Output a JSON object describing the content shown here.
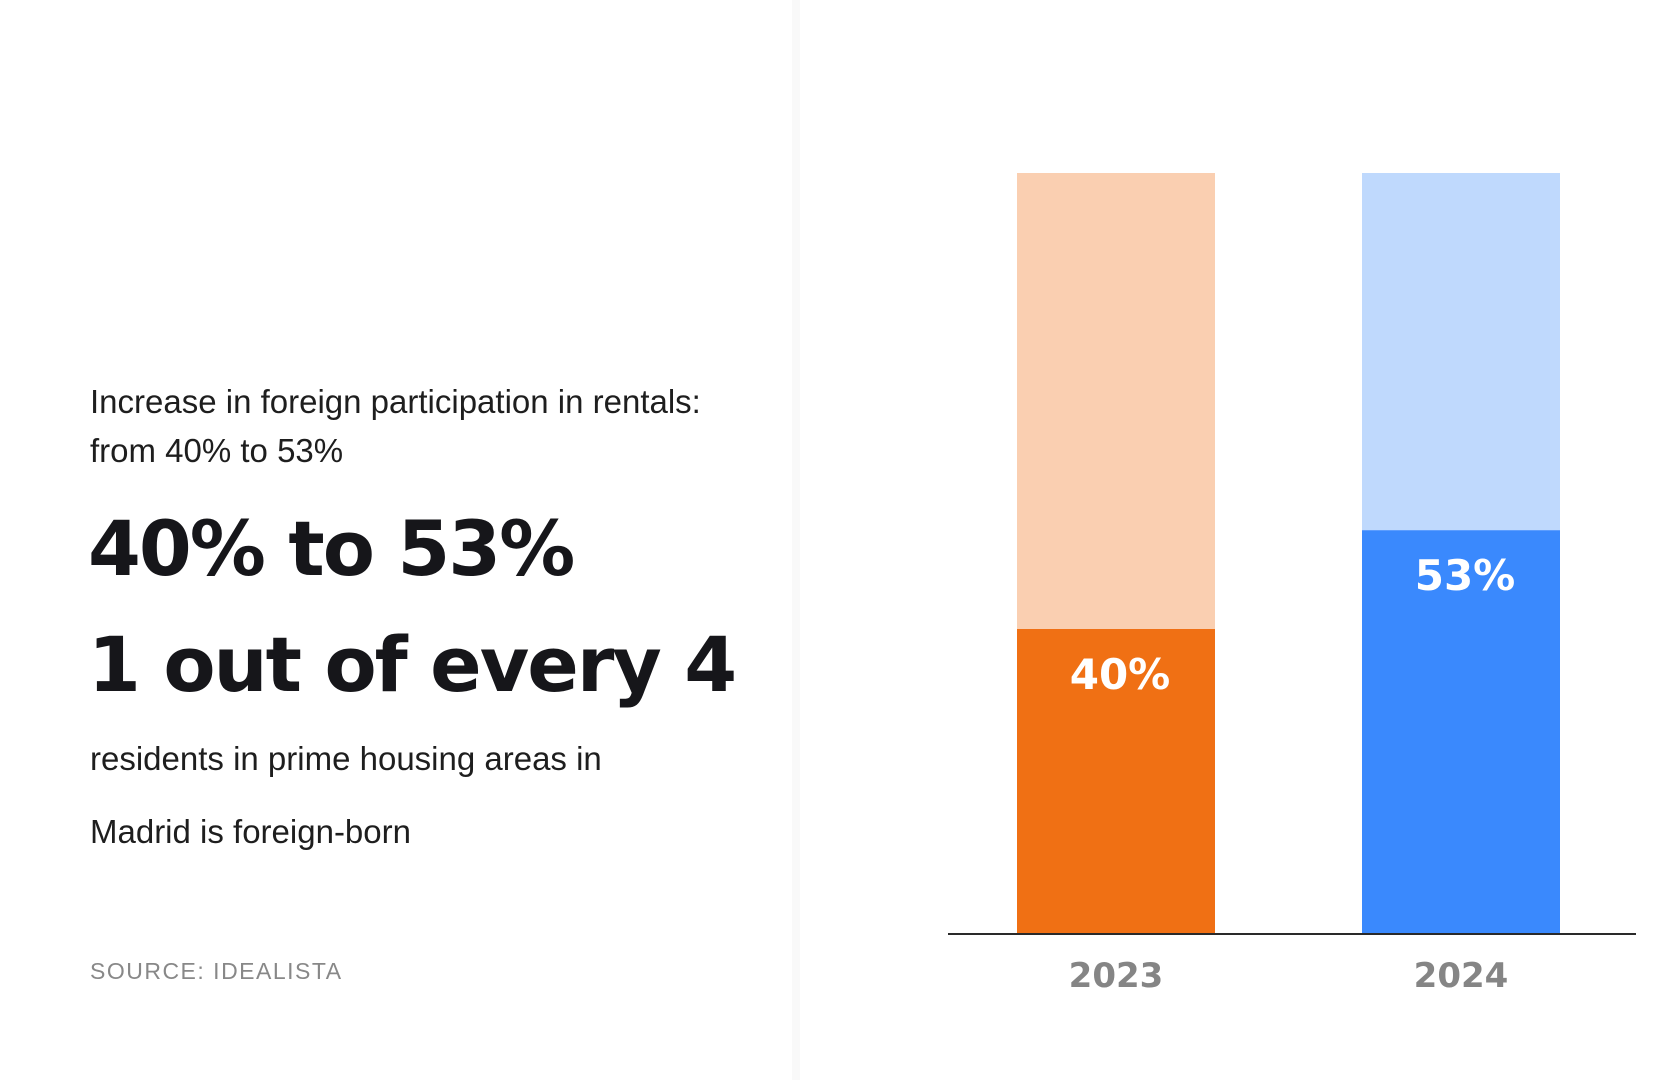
{
  "left": {
    "subtitle": "Increase in foreign participation in rentals: from 40% to 53%",
    "stat_primary": "40% to 53%",
    "stat_secondary": "1 out of every 4",
    "description_line1": "residents in prime housing areas in",
    "description_line2": "Madrid is foreign-born",
    "source": "SOURCE: IDEALISTA"
  },
  "chart_data": {
    "type": "bar",
    "stacked_percent": true,
    "categories": [
      "2023",
      "2024"
    ],
    "values": [
      40,
      53
    ],
    "value_labels": [
      "40%",
      "53%"
    ],
    "ylim": [
      0,
      100
    ],
    "colors": {
      "2023": {
        "fill": "#f07014",
        "remainder": "#facfb1"
      },
      "2024": {
        "fill": "#3a89fd",
        "remainder": "#bfd9fd"
      }
    },
    "axis_color": "#2a2a2a",
    "title": "",
    "xlabel": "",
    "ylabel": ""
  }
}
